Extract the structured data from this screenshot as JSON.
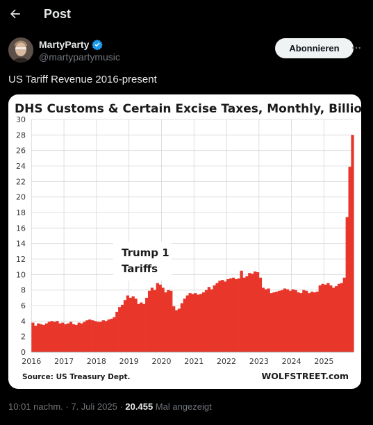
{
  "header": {
    "title": "Post",
    "back_icon": "arrow-left-icon"
  },
  "author": {
    "display_name": "MartyParty",
    "verified_icon": "verified-badge-icon",
    "verified_color": "#1d9bf0",
    "handle": "@martypartymusic",
    "follow_label": "Abonnieren",
    "more_icon": "more-horizontal-icon"
  },
  "tweet": {
    "text": "US Tariff Revenue 2016-present"
  },
  "meta": {
    "time": "10:01 nachm.",
    "sep1": " · ",
    "date": "7. Juli 2025",
    "sep2": " · ",
    "views": "20.455",
    "views_suffix": " Mal angezeigt"
  },
  "chart_data": {
    "type": "bar",
    "title": "DHS Customs & Certain Excise Taxes, Monthly, Billion $",
    "ylim": [
      0,
      30
    ],
    "yticks": [
      0,
      2,
      4,
      6,
      8,
      10,
      12,
      14,
      16,
      18,
      20,
      22,
      24,
      26,
      28,
      30
    ],
    "xticks": [
      "2016",
      "2017",
      "2018",
      "2019",
      "2020",
      "2021",
      "2022",
      "2023",
      "2024",
      "2025"
    ],
    "x_start": "2016-01",
    "grid": true,
    "bar_color": "#e8372a",
    "source": "Source: US Treasury Dept.",
    "brand": "WOLFSTREET.com",
    "annotation": [
      "Trump 1",
      "Tariffs"
    ],
    "values": [
      3.8,
      3.4,
      3.7,
      3.6,
      3.5,
      3.7,
      3.9,
      4.0,
      3.9,
      4.0,
      3.7,
      3.8,
      3.6,
      3.7,
      3.9,
      3.6,
      3.5,
      3.8,
      3.7,
      3.9,
      4.1,
      4.2,
      4.1,
      4.0,
      3.9,
      3.9,
      4.1,
      4.0,
      4.2,
      4.3,
      4.5,
      5.2,
      5.8,
      6.1,
      6.7,
      7.3,
      7.0,
      7.2,
      6.9,
      6.2,
      6.4,
      6.2,
      7.0,
      7.9,
      8.3,
      8.0,
      8.9,
      8.7,
      8.3,
      7.7,
      8.0,
      7.9,
      5.9,
      5.4,
      5.6,
      6.3,
      6.9,
      7.3,
      7.6,
      7.5,
      7.6,
      7.4,
      7.5,
      7.7,
      8.0,
      8.4,
      8.1,
      8.6,
      8.9,
      9.2,
      9.3,
      9.1,
      9.4,
      9.5,
      9.6,
      9.4,
      9.5,
      10.5,
      9.6,
      9.8,
      10.2,
      10.1,
      10.4,
      10.3,
      9.6,
      8.3,
      8.1,
      8.2,
      7.6,
      7.7,
      7.8,
      7.9,
      8.0,
      8.2,
      8.1,
      7.9,
      8.1,
      8.0,
      7.7,
      7.6,
      8.0,
      7.9,
      7.6,
      7.8,
      7.7,
      7.8,
      8.6,
      8.8,
      8.7,
      8.9,
      8.6,
      8.3,
      8.5,
      8.8,
      8.9,
      9.6,
      17.4,
      23.9,
      28.0
    ]
  }
}
